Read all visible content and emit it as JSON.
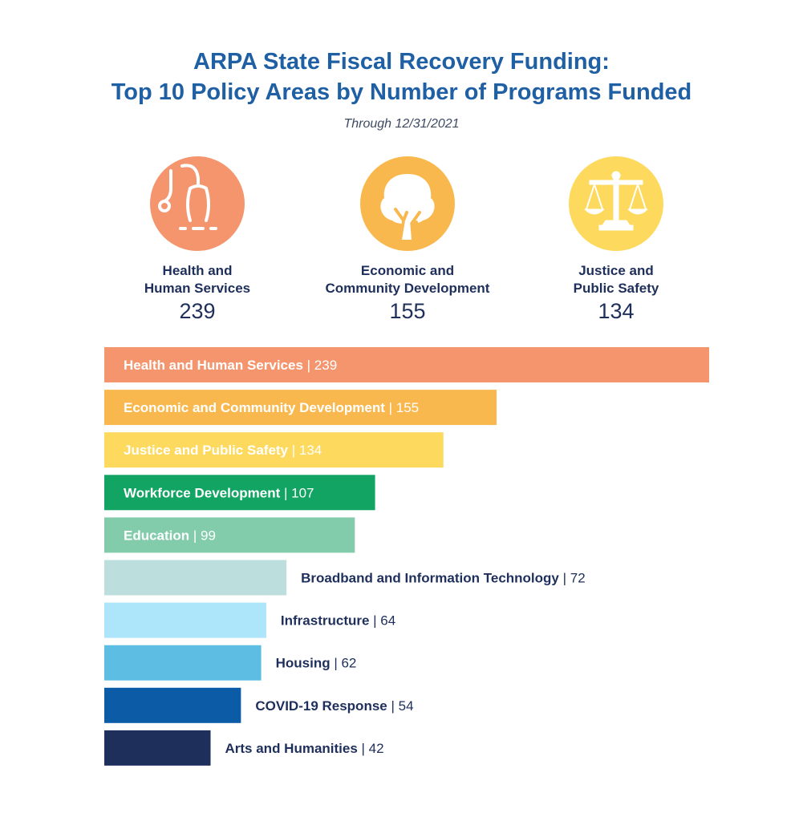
{
  "header": {
    "title_line1": "ARPA State Fiscal Recovery Funding:",
    "title_line2": "Top 10 Policy Areas by Number of Programs Funded",
    "subtitle": "Through 12/31/2021"
  },
  "highlights": [
    {
      "line1": "Health and",
      "line2": "Human Services",
      "value": "239",
      "icon": "stethoscope-icon",
      "color": "#f4956e"
    },
    {
      "line1": "Economic and",
      "line2": "Community Development",
      "value": "155",
      "icon": "tree-icon",
      "color": "#f9b84e"
    },
    {
      "line1": "Justice and",
      "line2": "Public Safety",
      "value": "134",
      "icon": "scales-of-justice-icon",
      "color": "#fdd95e"
    }
  ],
  "chart_data": {
    "type": "bar",
    "orientation": "horizontal",
    "categories": [
      "Health and Human Services",
      "Economic and Community Development",
      "Justice and Public Safety",
      "Workforce Development",
      "Education",
      "Broadband and Information Technology",
      "Infrastructure",
      "Housing",
      "COVID-19 Response",
      "Arts and Humanities"
    ],
    "values": [
      239,
      155,
      134,
      107,
      99,
      72,
      64,
      62,
      54,
      42
    ],
    "colors": [
      "#f4956e",
      "#f9b84e",
      "#fdd95e",
      "#12a463",
      "#82cbab",
      "#bcdfdd",
      "#ade5fb",
      "#5dbde3",
      "#0c5ba6",
      "#1f2f5c"
    ],
    "label_inside": [
      true,
      true,
      true,
      true,
      true,
      false,
      false,
      false,
      false,
      false
    ],
    "separator": "|"
  }
}
